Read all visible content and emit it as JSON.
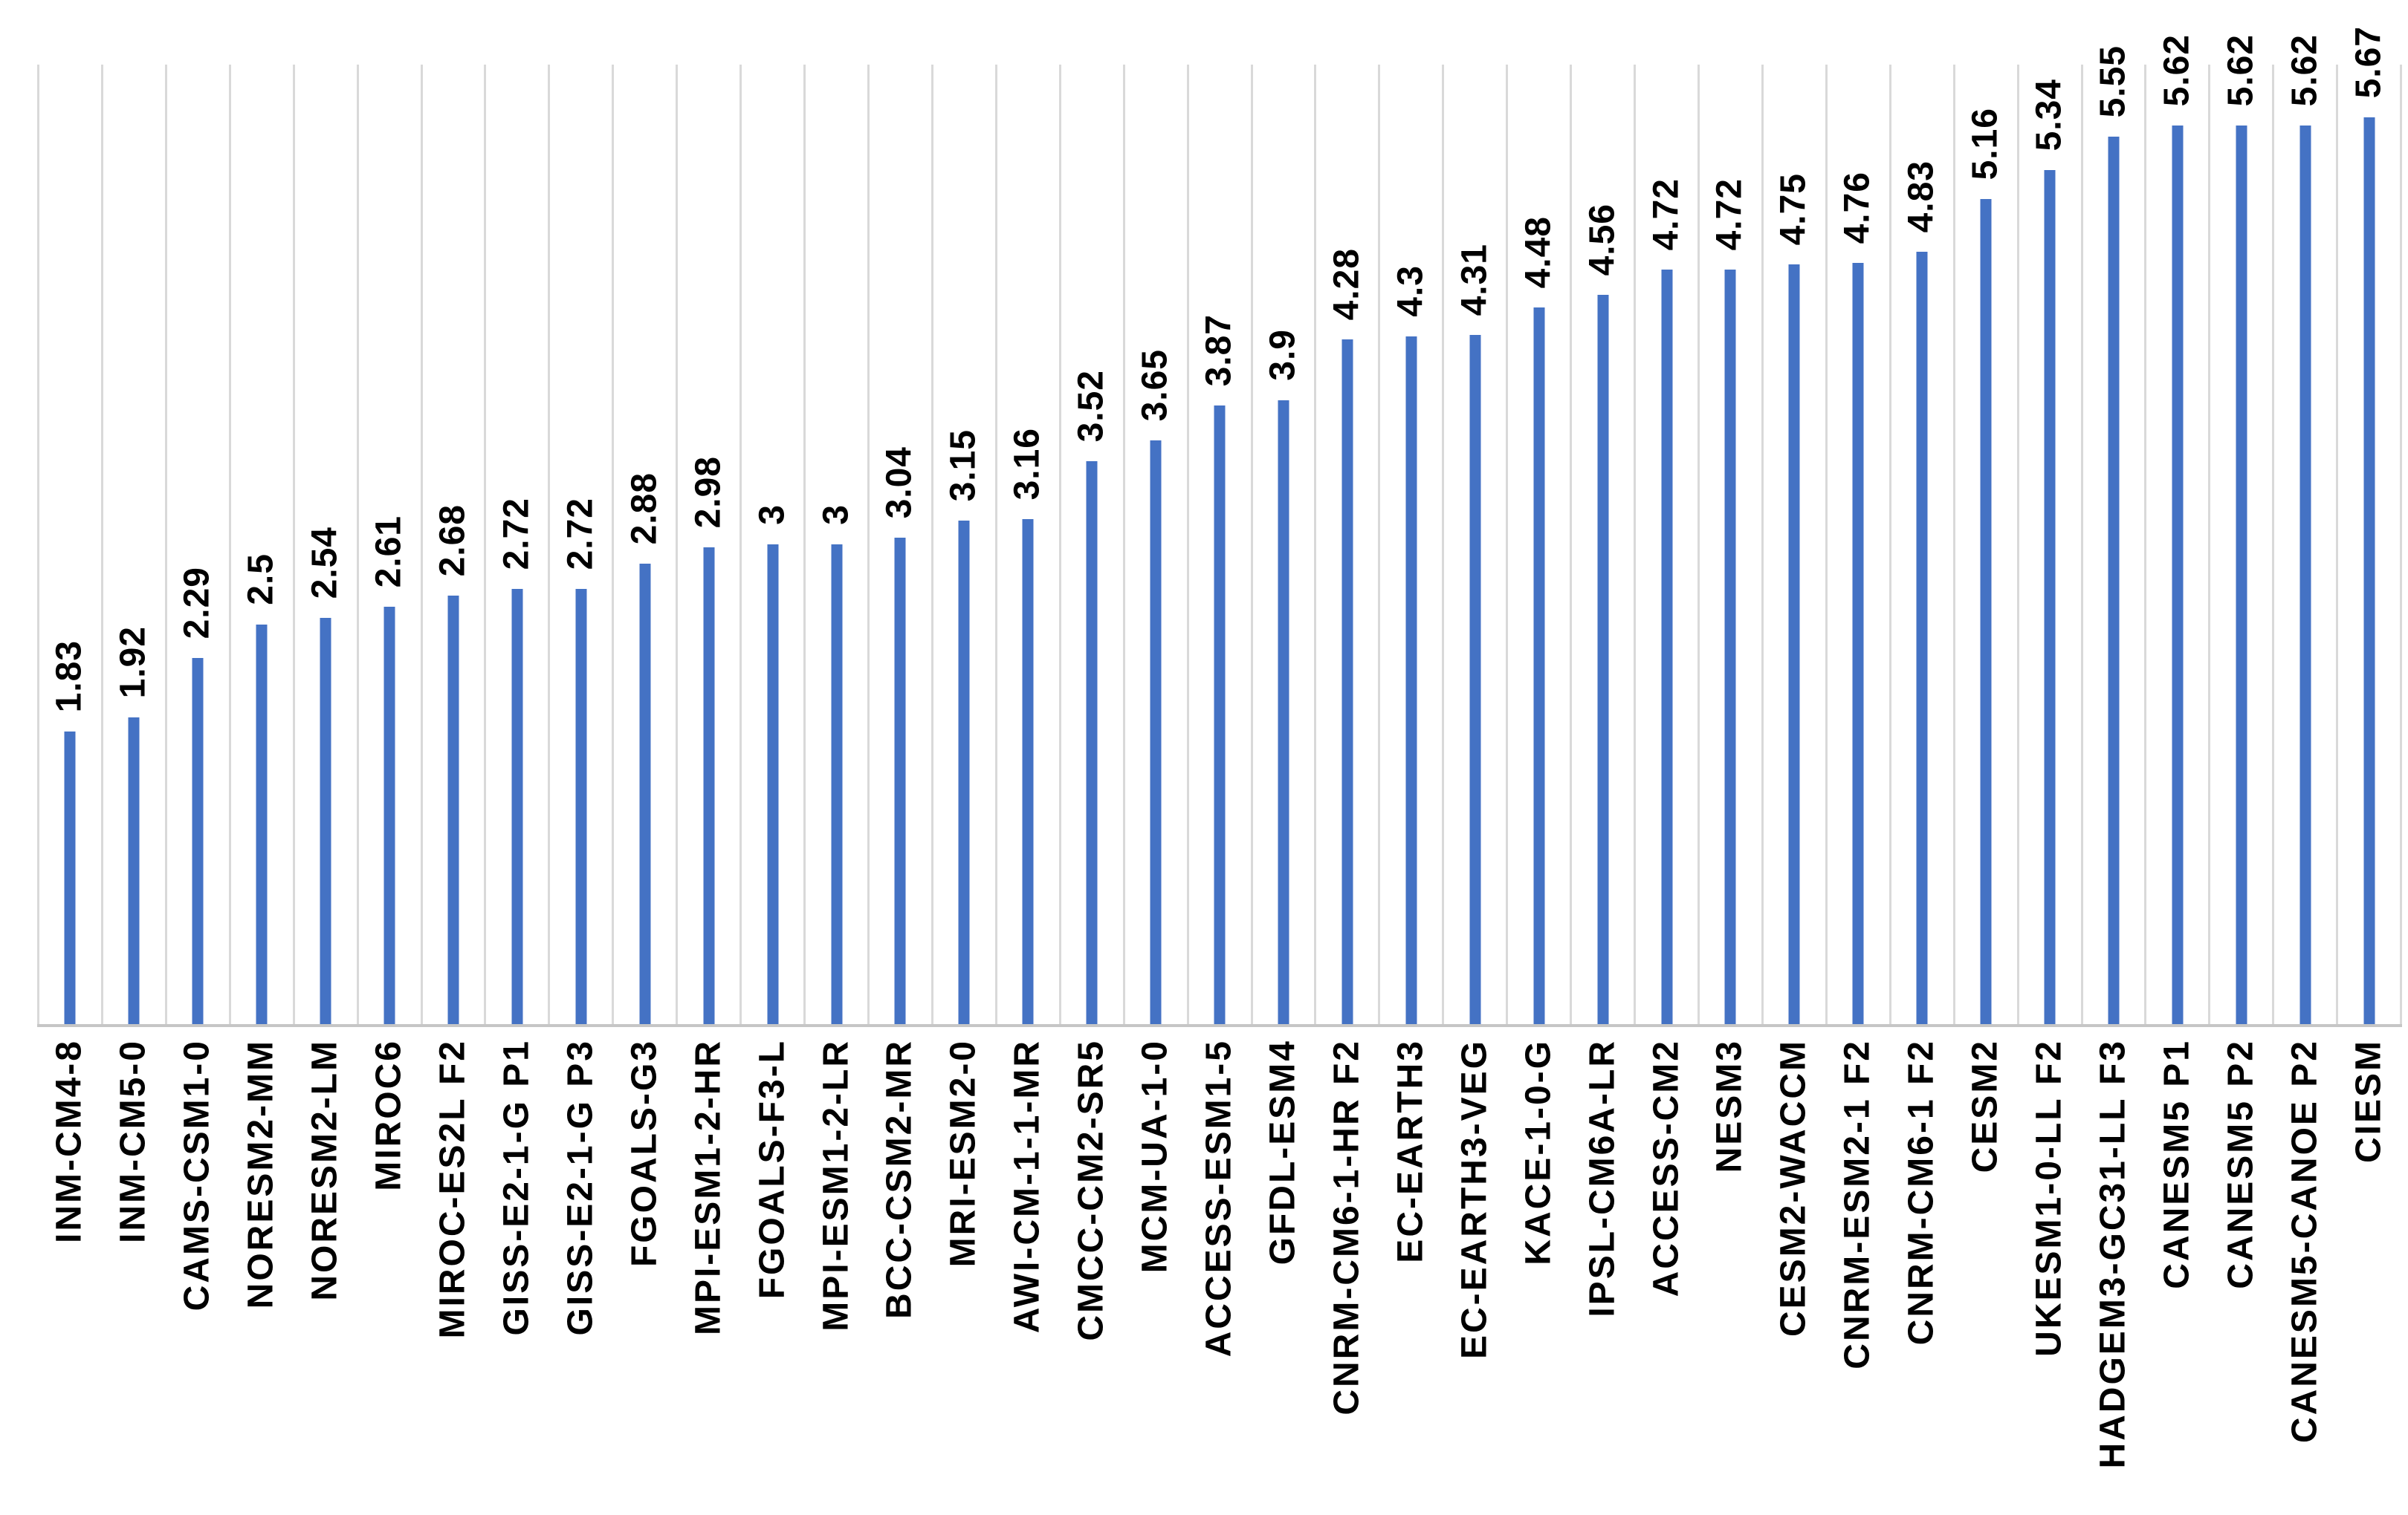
{
  "chart_data": {
    "type": "bar",
    "title": "",
    "xlabel": "",
    "ylabel": "",
    "categories": [
      "INM-CM4-8",
      "INM-CM5-0",
      "CAMS-CSM1-0",
      "NORESM2-MM",
      "NORESM2-LM",
      "MIROC6",
      "MIROC-ES2L F2",
      "GISS-E2-1-G P1",
      "GISS-E2-1-G P3",
      "FGOALS-G3",
      "MPI-ESM1-2-HR",
      "FGOALS-F3-L",
      "MPI-ESM1-2-LR",
      "BCC-CSM2-MR",
      "MRI-ESM2-0",
      "AWI-CM-1-1-MR",
      "CMCC-CM2-SR5",
      "MCM-UA-1-0",
      "ACCESS-ESM1-5",
      "GFDL-ESM4",
      "CNRM-CM6-1-HR F2",
      "EC-EARTH3",
      "EC-EARTH3-VEG",
      "KACE-1-0-G",
      "IPSL-CM6A-LR",
      "ACCESS-CM2",
      "NESM3",
      "CESM2-WACCM",
      "CNRM-ESM2-1 F2",
      "CNRM-CM6-1 F2",
      "CESM2",
      "UKESM1-0-LL F2",
      "HADGEM3-GC31-LL F3",
      "CANESM5 P1",
      "CANESM5 P2",
      "CANESM5-CANOE P2",
      "CIESM"
    ],
    "values": [
      1.83,
      1.92,
      2.29,
      2.5,
      2.54,
      2.61,
      2.68,
      2.72,
      2.72,
      2.88,
      2.98,
      3,
      3,
      3.04,
      3.15,
      3.16,
      3.52,
      3.65,
      3.87,
      3.9,
      4.28,
      4.3,
      4.31,
      4.48,
      4.56,
      4.72,
      4.72,
      4.75,
      4.76,
      4.83,
      5.16,
      5.34,
      5.55,
      5.62,
      5.62,
      5.62,
      5.67
    ],
    "value_labels": [
      "1.83",
      "1.92",
      "2.29",
      "2.5",
      "2.54",
      "2.61",
      "2.68",
      "2.72",
      "2.72",
      "2.88",
      "2.98",
      "3",
      "3",
      "3.04",
      "3.15",
      "3.16",
      "3.52",
      "3.65",
      "3.87",
      "3.9",
      "4.28",
      "4.3",
      "4.31",
      "4.48",
      "4.56",
      "4.72",
      "4.72",
      "4.75",
      "4.76",
      "4.83",
      "5.16",
      "5.34",
      "5.55",
      "5.62",
      "5.62",
      "5.62",
      "5.67"
    ],
    "ylim": [
      0,
      6
    ],
    "grid": "vertical-category-gridlines",
    "legend_position": "none",
    "bar_color": "#4472c4",
    "gridline_color": "#d9d9d9",
    "axis_color": "#c6c6c6",
    "label_color": "#000000"
  }
}
